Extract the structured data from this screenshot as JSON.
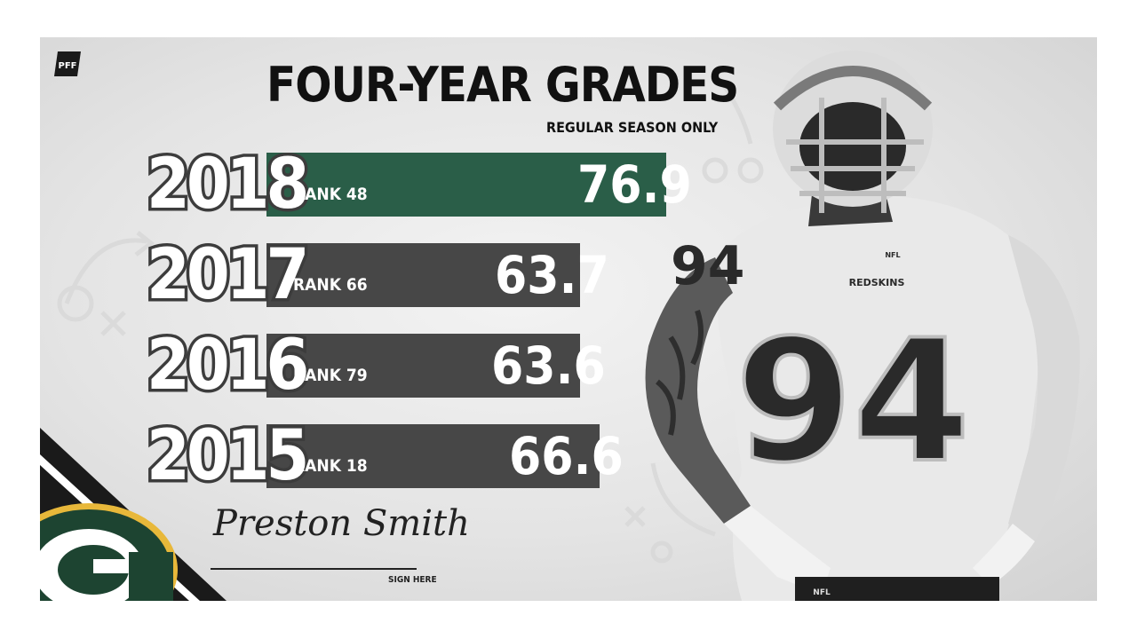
{
  "brand": {
    "logo_text": "PFF"
  },
  "title": "FOUR-YEAR GRADES",
  "subtitle": "REGULAR SEASON ONLY",
  "rows": [
    {
      "year": "2018",
      "rank": "RANK 48",
      "grade": "76.9",
      "bar_color": "#2a5e48",
      "highlight": true
    },
    {
      "year": "2017",
      "rank": "RANK 66",
      "grade": "63.7",
      "bar_color": "#474747",
      "highlight": false
    },
    {
      "year": "2016",
      "rank": "RANK 79",
      "grade": "63.6",
      "bar_color": "#474747",
      "highlight": false
    },
    {
      "year": "2015",
      "rank": "RANK 18",
      "grade": "66.6",
      "bar_color": "#474747",
      "highlight": false
    }
  ],
  "signature": {
    "name": "Preston Smith",
    "caption": "SIGN HERE"
  },
  "player": {
    "jersey_number": "94",
    "team_wordmark": "REDSKINS",
    "league_mark": "NFL"
  },
  "team_logo": {
    "letter": "G",
    "green": "#1d4431",
    "gold": "#e8b83a"
  },
  "colors": {
    "highlight_green": "#2a5e48",
    "bar_gray": "#474747",
    "year_outline": "#3c3c3c"
  }
}
